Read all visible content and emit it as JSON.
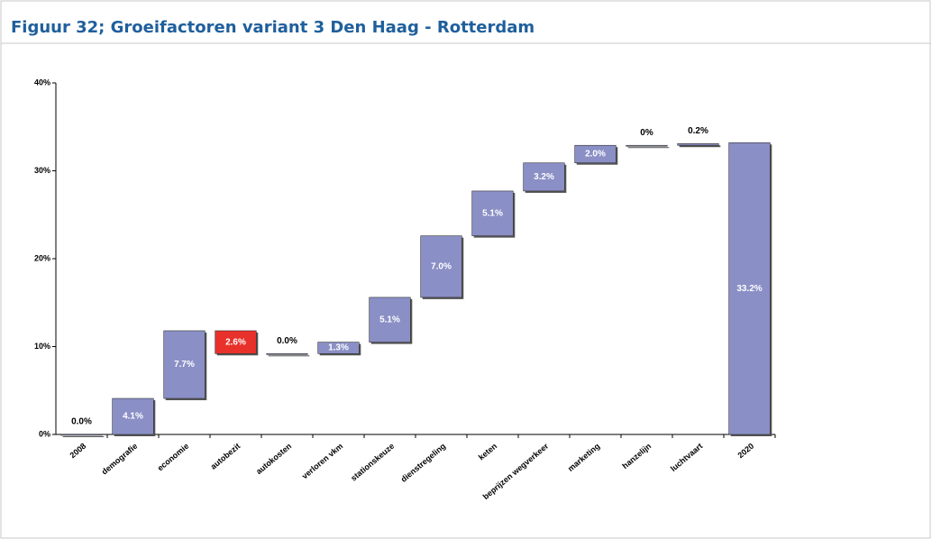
{
  "chart_data": {
    "type": "waterfall",
    "title": "Figuur 32; Groeifactoren variant 3 Den Haag - Rotterdam",
    "categories": [
      "2008",
      "demografie",
      "economie",
      "autobezit",
      "autokosten",
      "verloren vkm",
      "stationskeuze",
      "dienstregeling",
      "keten",
      "beprijzen wegverkeer",
      "marketing",
      "hanzelijn",
      "luchtvaart",
      "2020"
    ],
    "values": [
      0.0,
      4.1,
      7.7,
      -2.6,
      0.0,
      1.3,
      5.1,
      7.0,
      5.1,
      3.2,
      2.0,
      0,
      0.2,
      33.2
    ],
    "value_labels": [
      "0.0%",
      "4.1%",
      "7.7%",
      "2.6%",
      "0.0%",
      "1.3%",
      "5.1%",
      "7.0%",
      "5.1%",
      "3.2%",
      "2.0%",
      "0%",
      "0.2%",
      "33.2%"
    ],
    "is_total": [
      true,
      false,
      false,
      false,
      false,
      false,
      false,
      false,
      false,
      false,
      false,
      false,
      false,
      true
    ],
    "colors": [
      "#8a8fc6",
      "#8a8fc6",
      "#8a8fc6",
      "#e8312a",
      "#8a8fc6",
      "#8a8fc6",
      "#8a8fc6",
      "#8a8fc6",
      "#8a8fc6",
      "#8a8fc6",
      "#8a8fc6",
      "#8a8fc6",
      "#8a8fc6",
      "#8a8fc6"
    ],
    "ylim": [
      0,
      40
    ],
    "yticks": [
      {
        "value": 0,
        "label": "0%"
      },
      {
        "value": 10,
        "label": "10%"
      },
      {
        "value": 20,
        "label": "20%"
      },
      {
        "value": 30,
        "label": "30%"
      },
      {
        "value": 40,
        "label": "40%"
      }
    ]
  }
}
